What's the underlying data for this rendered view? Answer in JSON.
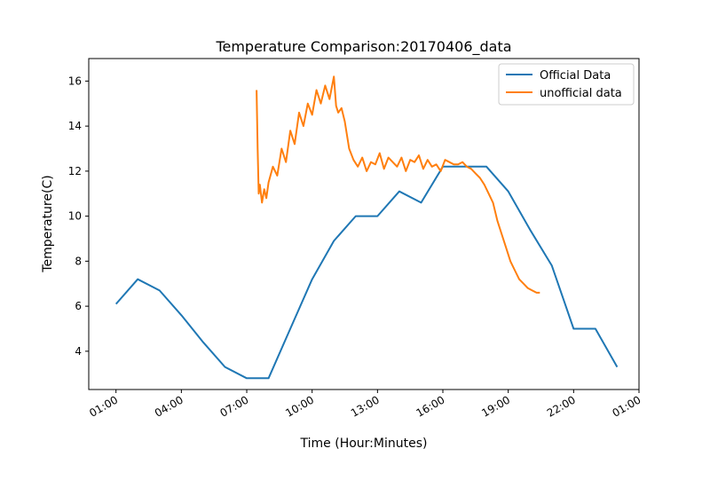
{
  "chart_data": {
    "type": "line",
    "title": "Temperature Comparison:20170406_data",
    "xlabel": "Time (Hour:Minutes)",
    "ylabel": "Temperature(C)",
    "x_tick_labels": [
      "01:00",
      "04:00",
      "07:00",
      "10:00",
      "13:00",
      "16:00",
      "19:00",
      "22:00",
      "01:00"
    ],
    "x_tick_hours": [
      1,
      4,
      7,
      10,
      13,
      16,
      19,
      22,
      25
    ],
    "xlim_hours": [
      -0.25,
      25.0
    ],
    "y_ticks": [
      4,
      6,
      8,
      10,
      12,
      14,
      16
    ],
    "ylim": [
      2.3,
      17.0
    ],
    "grid": false,
    "legend_position": "top-right",
    "series": [
      {
        "name": "Official Data",
        "color": "#1f77b4",
        "x_hours": [
          1,
          2,
          3,
          4,
          5,
          6,
          7,
          8,
          9,
          10,
          11,
          12,
          13,
          14,
          15,
          16,
          17,
          18,
          19,
          20,
          21,
          22,
          23,
          24
        ],
        "y": [
          6.1,
          7.2,
          6.7,
          5.6,
          4.4,
          3.3,
          2.8,
          2.8,
          5.0,
          7.2,
          8.9,
          10.0,
          10.0,
          11.1,
          10.6,
          12.2,
          12.2,
          12.2,
          11.1,
          9.4,
          7.8,
          5.0,
          5.0,
          3.3
        ]
      },
      {
        "name": "unofficial data",
        "color": "#ff7f0e",
        "x_hours": [
          7.45,
          7.5,
          7.55,
          7.6,
          7.7,
          7.8,
          7.9,
          8.0,
          8.2,
          8.4,
          8.6,
          8.8,
          9.0,
          9.2,
          9.4,
          9.6,
          9.8,
          10.0,
          10.2,
          10.4,
          10.6,
          10.8,
          11.0,
          11.1,
          11.2,
          11.35,
          11.5,
          11.7,
          11.9,
          12.1,
          12.3,
          12.5,
          12.7,
          12.9,
          13.1,
          13.3,
          13.5,
          13.7,
          13.9,
          14.1,
          14.3,
          14.5,
          14.7,
          14.9,
          15.1,
          15.3,
          15.5,
          15.7,
          15.9,
          16.1,
          16.3,
          16.5,
          16.7,
          16.9,
          17.1,
          17.3,
          17.5,
          17.7,
          17.9,
          18.1,
          18.3,
          18.5,
          18.7,
          18.9,
          19.1,
          19.3,
          19.5,
          19.7,
          19.9,
          20.1,
          20.3,
          20.45
        ],
        "y": [
          15.6,
          13.0,
          11.0,
          11.4,
          10.6,
          11.2,
          10.8,
          11.5,
          12.2,
          11.8,
          13.0,
          12.4,
          13.8,
          13.2,
          14.6,
          14.0,
          15.0,
          14.5,
          15.6,
          15.0,
          15.8,
          15.2,
          16.2,
          14.9,
          14.6,
          14.8,
          14.2,
          13.0,
          12.5,
          12.2,
          12.6,
          12.0,
          12.4,
          12.3,
          12.8,
          12.1,
          12.6,
          12.4,
          12.2,
          12.6,
          12.0,
          12.5,
          12.4,
          12.7,
          12.1,
          12.5,
          12.2,
          12.3,
          12.0,
          12.5,
          12.4,
          12.3,
          12.3,
          12.4,
          12.2,
          12.1,
          11.9,
          11.7,
          11.4,
          11.0,
          10.6,
          9.8,
          9.2,
          8.6,
          8.0,
          7.6,
          7.2,
          7.0,
          6.8,
          6.7,
          6.6,
          6.6
        ]
      }
    ]
  }
}
